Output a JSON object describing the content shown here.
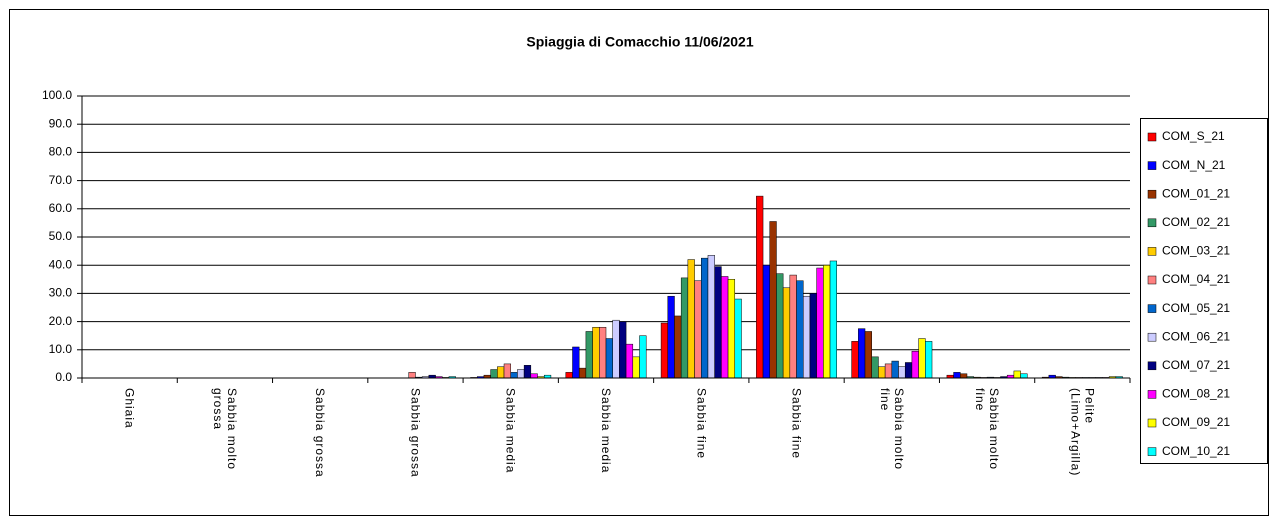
{
  "chart_data": {
    "type": "bar",
    "title": "Spiaggia di Comacchio 11/06/2021",
    "categories": [
      "Ghiaia",
      "Sabbia molto grossa",
      "Sabbia grossa",
      "Sabbia grossa",
      "Sabbia media",
      "Sabbia media",
      "Sabbia fine",
      "Sabbia fine",
      "Sabbia molto fine",
      "Sabbia molto fine",
      "Pelite (Limo+Argilla)"
    ],
    "series": [
      {
        "name": "COM_S_21",
        "color": "#ff0000",
        "values": [
          0,
          0,
          0,
          0,
          0.2,
          2,
          19.5,
          64.5,
          13,
          1,
          0.3
        ]
      },
      {
        "name": "COM_N_21",
        "color": "#0000ff",
        "values": [
          0,
          0,
          0,
          0,
          0.5,
          11,
          29,
          40,
          17.5,
          2,
          1
        ]
      },
      {
        "name": "COM_01_21",
        "color": "#993300",
        "values": [
          0,
          0,
          0,
          0,
          1,
          3.5,
          22,
          55.5,
          16.5,
          1.5,
          0.5
        ]
      },
      {
        "name": "COM_02_21",
        "color": "#339966",
        "values": [
          0,
          0,
          0,
          0,
          3,
          16.5,
          35.5,
          37,
          7.5,
          0.5,
          0.3
        ]
      },
      {
        "name": "COM_03_21",
        "color": "#ffcc00",
        "values": [
          0,
          0,
          0,
          0,
          4,
          18,
          42,
          32,
          4,
          0.3,
          0.2
        ]
      },
      {
        "name": "COM_04_21",
        "color": "#ff8080",
        "values": [
          0,
          0,
          0,
          2,
          5,
          18,
          34.5,
          36.5,
          5,
          0.2,
          0.2
        ]
      },
      {
        "name": "COM_05_21",
        "color": "#0066cc",
        "values": [
          0,
          0,
          0,
          0.3,
          2,
          14,
          42.5,
          34.5,
          6,
          0.3,
          0.2
        ]
      },
      {
        "name": "COM_06_21",
        "color": "#ccccff",
        "values": [
          0,
          0,
          0,
          0.5,
          3,
          20.5,
          43.5,
          29,
          4,
          0.2,
          0.2
        ]
      },
      {
        "name": "COM_07_21",
        "color": "#000080",
        "values": [
          0,
          0,
          0,
          1,
          4.5,
          20,
          39.5,
          30,
          5.5,
          0.5,
          0.2
        ]
      },
      {
        "name": "COM_08_21",
        "color": "#ff00ff",
        "values": [
          0,
          0,
          0,
          0.5,
          1.5,
          12,
          36,
          39,
          9.5,
          1,
          0.2
        ]
      },
      {
        "name": "COM_09_21",
        "color": "#ffff00",
        "values": [
          0,
          0,
          0,
          0.2,
          0.5,
          7.5,
          35,
          40,
          14,
          2.5,
          0.5
        ]
      },
      {
        "name": "COM_10_21",
        "color": "#00ffff",
        "values": [
          0,
          0,
          0,
          0.5,
          1,
          15,
          28,
          41.5,
          13,
          1.5,
          0.5
        ]
      }
    ],
    "ylim": [
      0,
      100
    ],
    "yticks": [
      {
        "value": 0,
        "label": "0.0"
      },
      {
        "value": 10,
        "label": "10.0"
      },
      {
        "value": 20,
        "label": "20.0"
      },
      {
        "value": 30,
        "label": "30.0"
      },
      {
        "value": 40,
        "label": "40.0"
      },
      {
        "value": 50,
        "label": "50.0"
      },
      {
        "value": 60,
        "label": "60.0"
      },
      {
        "value": 70,
        "label": "70.0"
      },
      {
        "value": 80,
        "label": "80.0"
      },
      {
        "value": 90,
        "label": "90.0"
      },
      {
        "value": 100,
        "label": "100.0"
      }
    ],
    "grid": true,
    "legend": "right"
  }
}
